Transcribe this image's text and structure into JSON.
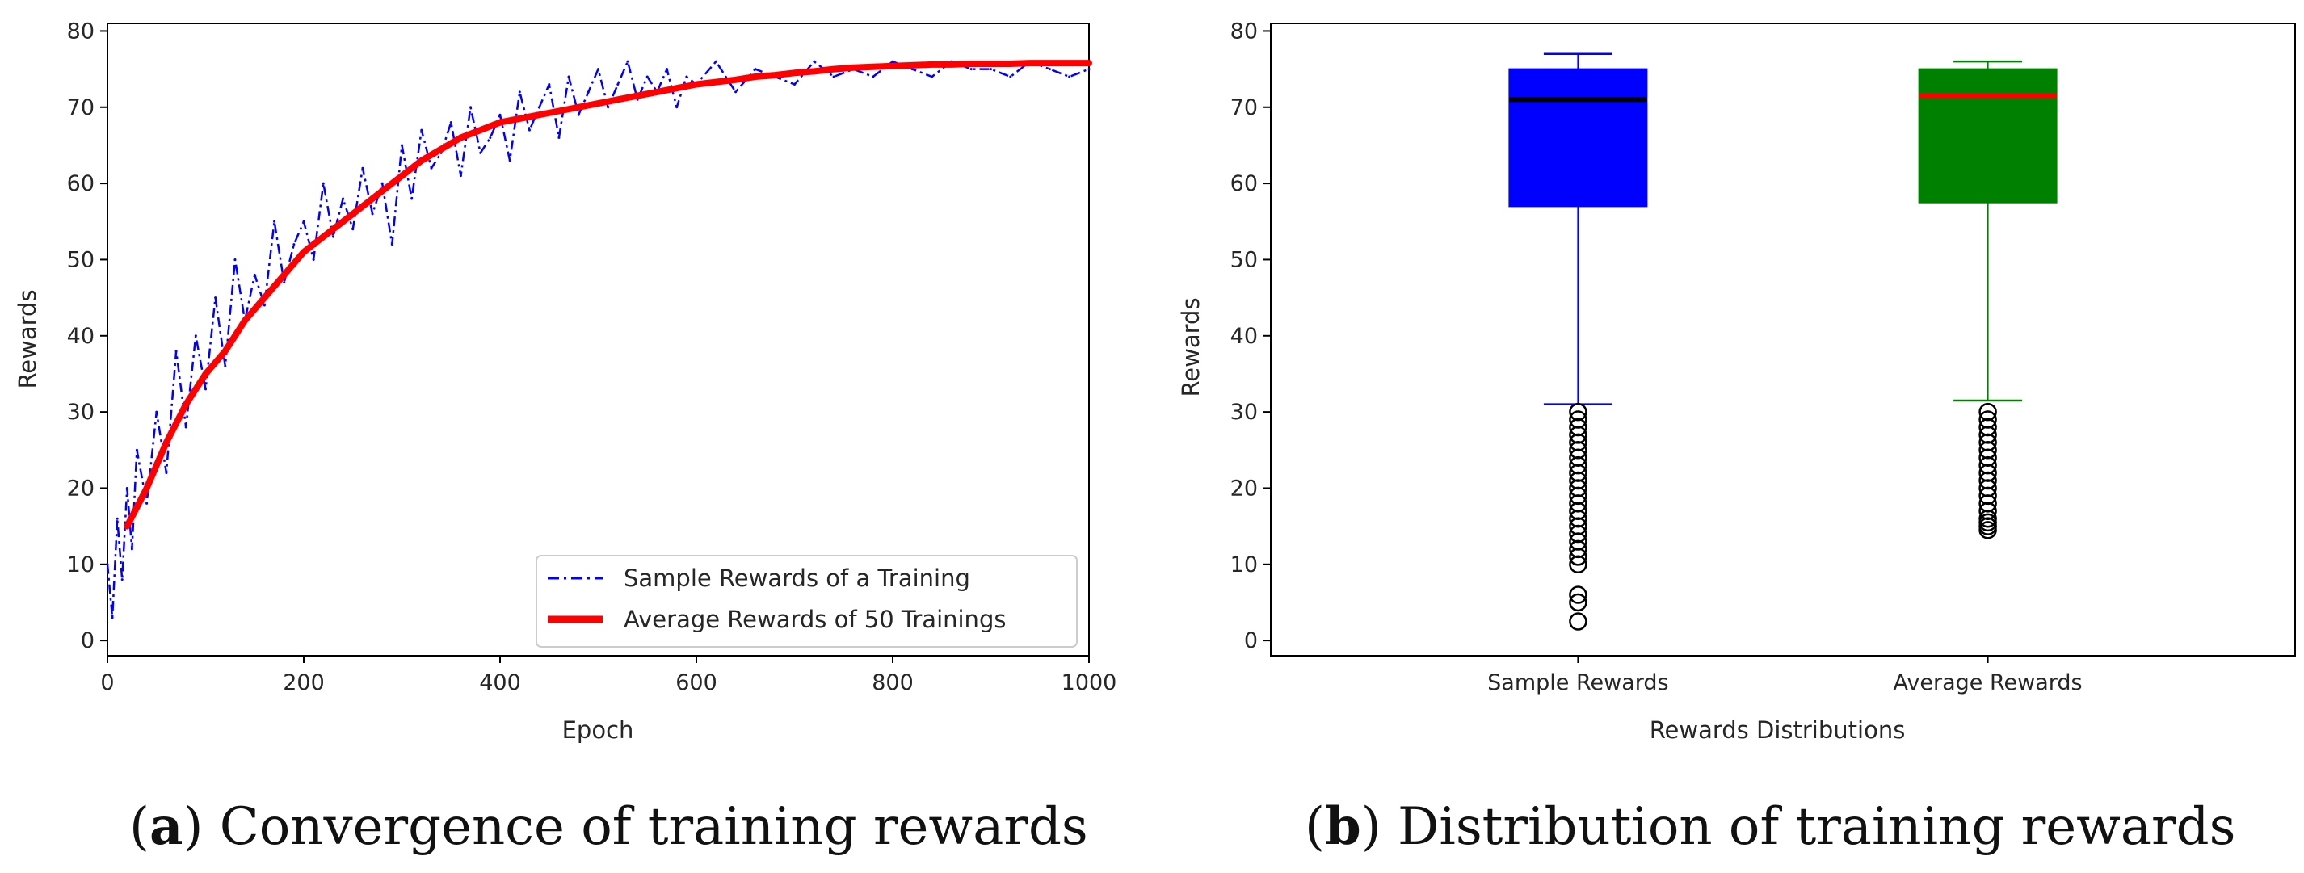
{
  "chart_data": [
    {
      "type": "line",
      "caption_letter": "a",
      "caption": "Convergence of training rewards",
      "xlabel": "Epoch",
      "ylabel": "Rewards",
      "xlim": [
        0,
        1000
      ],
      "ylim": [
        -2,
        81
      ],
      "xticks": [
        0,
        200,
        400,
        600,
        800,
        1000
      ],
      "yticks": [
        0,
        10,
        20,
        30,
        40,
        50,
        60,
        70,
        80
      ],
      "legend_position": "lower-right",
      "series": [
        {
          "name": "Sample Rewards of a Training",
          "color": "#0000ff",
          "style": "dash-dot",
          "x": [
            0,
            5,
            10,
            15,
            20,
            25,
            30,
            40,
            50,
            60,
            70,
            80,
            90,
            100,
            110,
            120,
            130,
            140,
            150,
            160,
            170,
            180,
            190,
            200,
            210,
            220,
            230,
            240,
            250,
            260,
            270,
            280,
            290,
            300,
            310,
            320,
            330,
            340,
            350,
            360,
            370,
            380,
            390,
            400,
            410,
            420,
            430,
            440,
            450,
            460,
            470,
            480,
            490,
            500,
            510,
            520,
            530,
            540,
            550,
            560,
            570,
            580,
            590,
            600,
            620,
            640,
            660,
            680,
            700,
            720,
            740,
            760,
            780,
            800,
            820,
            840,
            860,
            880,
            900,
            920,
            940,
            960,
            980,
            1000
          ],
          "values": [
            10,
            3,
            16,
            8,
            20,
            12,
            25,
            18,
            30,
            22,
            38,
            28,
            40,
            33,
            45,
            36,
            50,
            42,
            48,
            44,
            55,
            47,
            52,
            55,
            50,
            60,
            53,
            58,
            54,
            62,
            56,
            60,
            52,
            65,
            58,
            67,
            62,
            64,
            68,
            61,
            70,
            64,
            66,
            69,
            63,
            72,
            67,
            70,
            73,
            66,
            74,
            69,
            72,
            75,
            70,
            73,
            76,
            71,
            74,
            72,
            75,
            70,
            74,
            73,
            76,
            72,
            75,
            74,
            73,
            76,
            74,
            75,
            74,
            76,
            75,
            74,
            76,
            75,
            75,
            74,
            76,
            75,
            74,
            75
          ]
        },
        {
          "name": "Average Rewards of 50 Trainings",
          "color": "#ff0000",
          "style": "solid-thick",
          "x": [
            20,
            40,
            60,
            80,
            100,
            120,
            140,
            160,
            180,
            200,
            220,
            240,
            260,
            280,
            300,
            320,
            340,
            360,
            380,
            400,
            420,
            440,
            460,
            480,
            500,
            520,
            540,
            560,
            580,
            600,
            620,
            640,
            660,
            680,
            700,
            720,
            740,
            760,
            780,
            800,
            820,
            840,
            860,
            880,
            900,
            920,
            940,
            960,
            980,
            1000
          ],
          "values": [
            15,
            20,
            26,
            31,
            35,
            38,
            42,
            45,
            48,
            51,
            53,
            55,
            57,
            59,
            61,
            63,
            64.5,
            66,
            67,
            68,
            68.5,
            69,
            69.5,
            70,
            70.5,
            71,
            71.5,
            72,
            72.5,
            73,
            73.3,
            73.6,
            74,
            74.2,
            74.5,
            74.7,
            75,
            75.2,
            75.3,
            75.4,
            75.5,
            75.6,
            75.6,
            75.7,
            75.7,
            75.7,
            75.8,
            75.8,
            75.8,
            75.8
          ]
        }
      ]
    },
    {
      "type": "box",
      "caption_letter": "b",
      "caption": "Distribution of training rewards",
      "xlabel": "Rewards Distributions",
      "ylabel": "Rewards",
      "ylim": [
        -2,
        81
      ],
      "yticks": [
        0,
        10,
        20,
        30,
        40,
        50,
        60,
        70,
        80
      ],
      "categories": [
        "Sample Rewards",
        "Average Rewards"
      ],
      "boxes": [
        {
          "name": "Sample Rewards",
          "color": "#0000ff",
          "median_color": "#000000",
          "q1": 57,
          "median": 71,
          "q3": 75,
          "whisker_low": 31,
          "whisker_high": 77,
          "outliers": [
            30,
            29,
            28,
            27,
            26,
            25,
            24,
            23,
            22,
            21,
            20,
            19,
            18,
            17,
            16,
            15,
            14,
            13,
            12,
            11,
            10,
            6,
            5,
            2.5
          ]
        },
        {
          "name": "Average Rewards",
          "color": "#008000",
          "median_color": "#ff0000",
          "q1": 57.5,
          "median": 71.5,
          "q3": 75,
          "whisker_low": 31.5,
          "whisker_high": 76,
          "outliers": [
            30,
            29,
            28,
            27,
            26,
            25,
            24,
            23,
            22,
            21,
            20,
            19,
            18,
            17,
            16,
            15.5,
            15,
            14.5
          ]
        }
      ]
    }
  ]
}
